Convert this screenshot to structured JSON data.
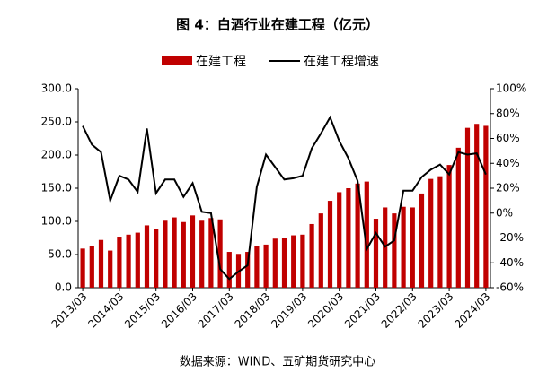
{
  "chart_data": {
    "type": "bar_line",
    "title": "图 4：白酒行业在建工程（亿元）",
    "source": "数据来源：WIND、五矿期货研究中心",
    "categories": [
      "2013/03",
      null,
      null,
      null,
      "2014/03",
      null,
      null,
      null,
      "2015/03",
      null,
      null,
      null,
      "2016/03",
      null,
      null,
      null,
      "2017/03",
      null,
      null,
      null,
      "2018/03",
      null,
      null,
      null,
      "2019/03",
      null,
      null,
      null,
      "2020/03",
      null,
      null,
      null,
      "2021/03",
      null,
      null,
      null,
      "2022/03",
      null,
      null,
      null,
      "2023/03",
      null,
      null,
      null,
      "2024/03"
    ],
    "series": [
      {
        "name": "在建工程",
        "color": "#c00000",
        "kind": "bar",
        "values": [
          59,
          63,
          72,
          56,
          77,
          80,
          83,
          94,
          88,
          101,
          106,
          99,
          109,
          101,
          105,
          103,
          54,
          51,
          54,
          63,
          65,
          74,
          75,
          79,
          80,
          96,
          112,
          131,
          144,
          150,
          157,
          160,
          104,
          121,
          112,
          122,
          121,
          142,
          164,
          168,
          185,
          211,
          241,
          247,
          244
        ]
      },
      {
        "name": "在建工程增速",
        "color": "#000000",
        "kind": "line",
        "axis": "y2",
        "values": [
          70,
          55,
          49,
          10,
          30,
          27,
          17,
          68,
          16,
          27,
          27,
          13,
          24,
          1,
          0,
          -45,
          -53,
          -47,
          -42,
          21,
          47,
          37,
          27,
          28,
          30,
          52,
          64,
          77,
          58,
          44,
          26,
          -29,
          -16,
          -27,
          -22,
          18,
          18,
          29,
          35,
          39,
          31,
          49,
          47,
          48,
          31
        ]
      }
    ],
    "ylim": [
      0,
      300
    ],
    "yticks": [
      {
        "value": 0,
        "label": "0.0"
      },
      {
        "value": 50,
        "label": "50.0"
      },
      {
        "value": 100,
        "label": "100.0"
      },
      {
        "value": 150,
        "label": "150.0"
      },
      {
        "value": 200,
        "label": "200.0"
      },
      {
        "value": 250,
        "label": "250.0"
      },
      {
        "value": 300,
        "label": "300.0"
      }
    ],
    "y2lim": [
      -60,
      100
    ],
    "y2ticks": [
      {
        "value": -60,
        "label": "-60%"
      },
      {
        "value": -40,
        "label": "-40%"
      },
      {
        "value": -20,
        "label": "-20%"
      },
      {
        "value": 0,
        "label": "0%"
      },
      {
        "value": 20,
        "label": "20%"
      },
      {
        "value": 40,
        "label": "40%"
      },
      {
        "value": 60,
        "label": "60%"
      },
      {
        "value": 80,
        "label": "80%"
      },
      {
        "value": 100,
        "label": "100%"
      }
    ],
    "legend": "top",
    "grid": false
  }
}
